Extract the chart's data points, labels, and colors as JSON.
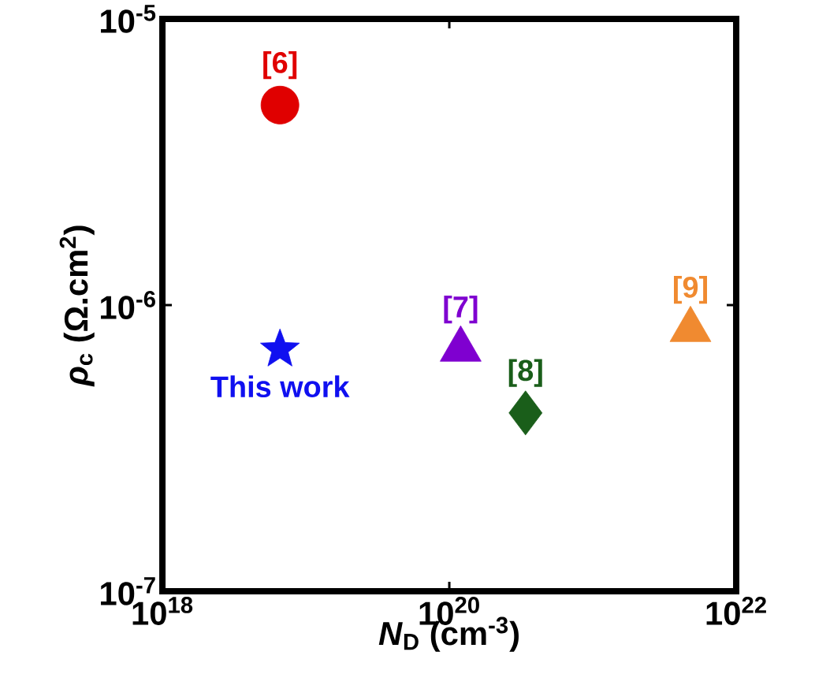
{
  "chart_data": {
    "type": "scatter",
    "log": "xy",
    "xlabel": "*N*$_{D}$ (cm$^{-3}$)",
    "ylabel": "*ρ*$_{c}$ (Ω.cm$^{2}$)",
    "xlim": [
      1e+18,
      1e+22
    ],
    "ylim": [
      1e-07,
      1e-05
    ],
    "xticks": [
      {
        "value": 1e+18,
        "label": "10$^{18}$"
      },
      {
        "value": 1e+20,
        "label": "10$^{20}$"
      },
      {
        "value": 1e+22,
        "label": "10$^{22}$"
      }
    ],
    "yticks": [
      {
        "value": 1e-07,
        "label": "10$^{-7}$"
      },
      {
        "value": 1e-06,
        "label": "10$^{-6}$"
      },
      {
        "value": 1e-05,
        "label": "10$^{-5}$"
      }
    ],
    "grid": false,
    "series": [
      {
        "name": "[6]",
        "color": "#e00000",
        "marker": "circle",
        "x": [
          6.6e+18
        ],
        "values": [
          5e-06
        ]
      },
      {
        "name": "This work",
        "color": "#1010f0",
        "marker": "star",
        "x": [
          6.6e+18
        ],
        "values": [
          7e-07
        ]
      },
      {
        "name": "[7]",
        "color": "#7f00d0",
        "marker": "triangle",
        "x": [
          1.2e+20
        ],
        "values": [
          7e-07
        ]
      },
      {
        "name": "[8]",
        "color": "#1a5e1a",
        "marker": "diamond",
        "x": [
          3.4e+20
        ],
        "values": [
          4.2e-07
        ]
      },
      {
        "name": "[9]",
        "color": "#f08a30",
        "marker": "triangle",
        "x": [
          4.8e+21
        ],
        "values": [
          8.2e-07
        ]
      }
    ]
  }
}
